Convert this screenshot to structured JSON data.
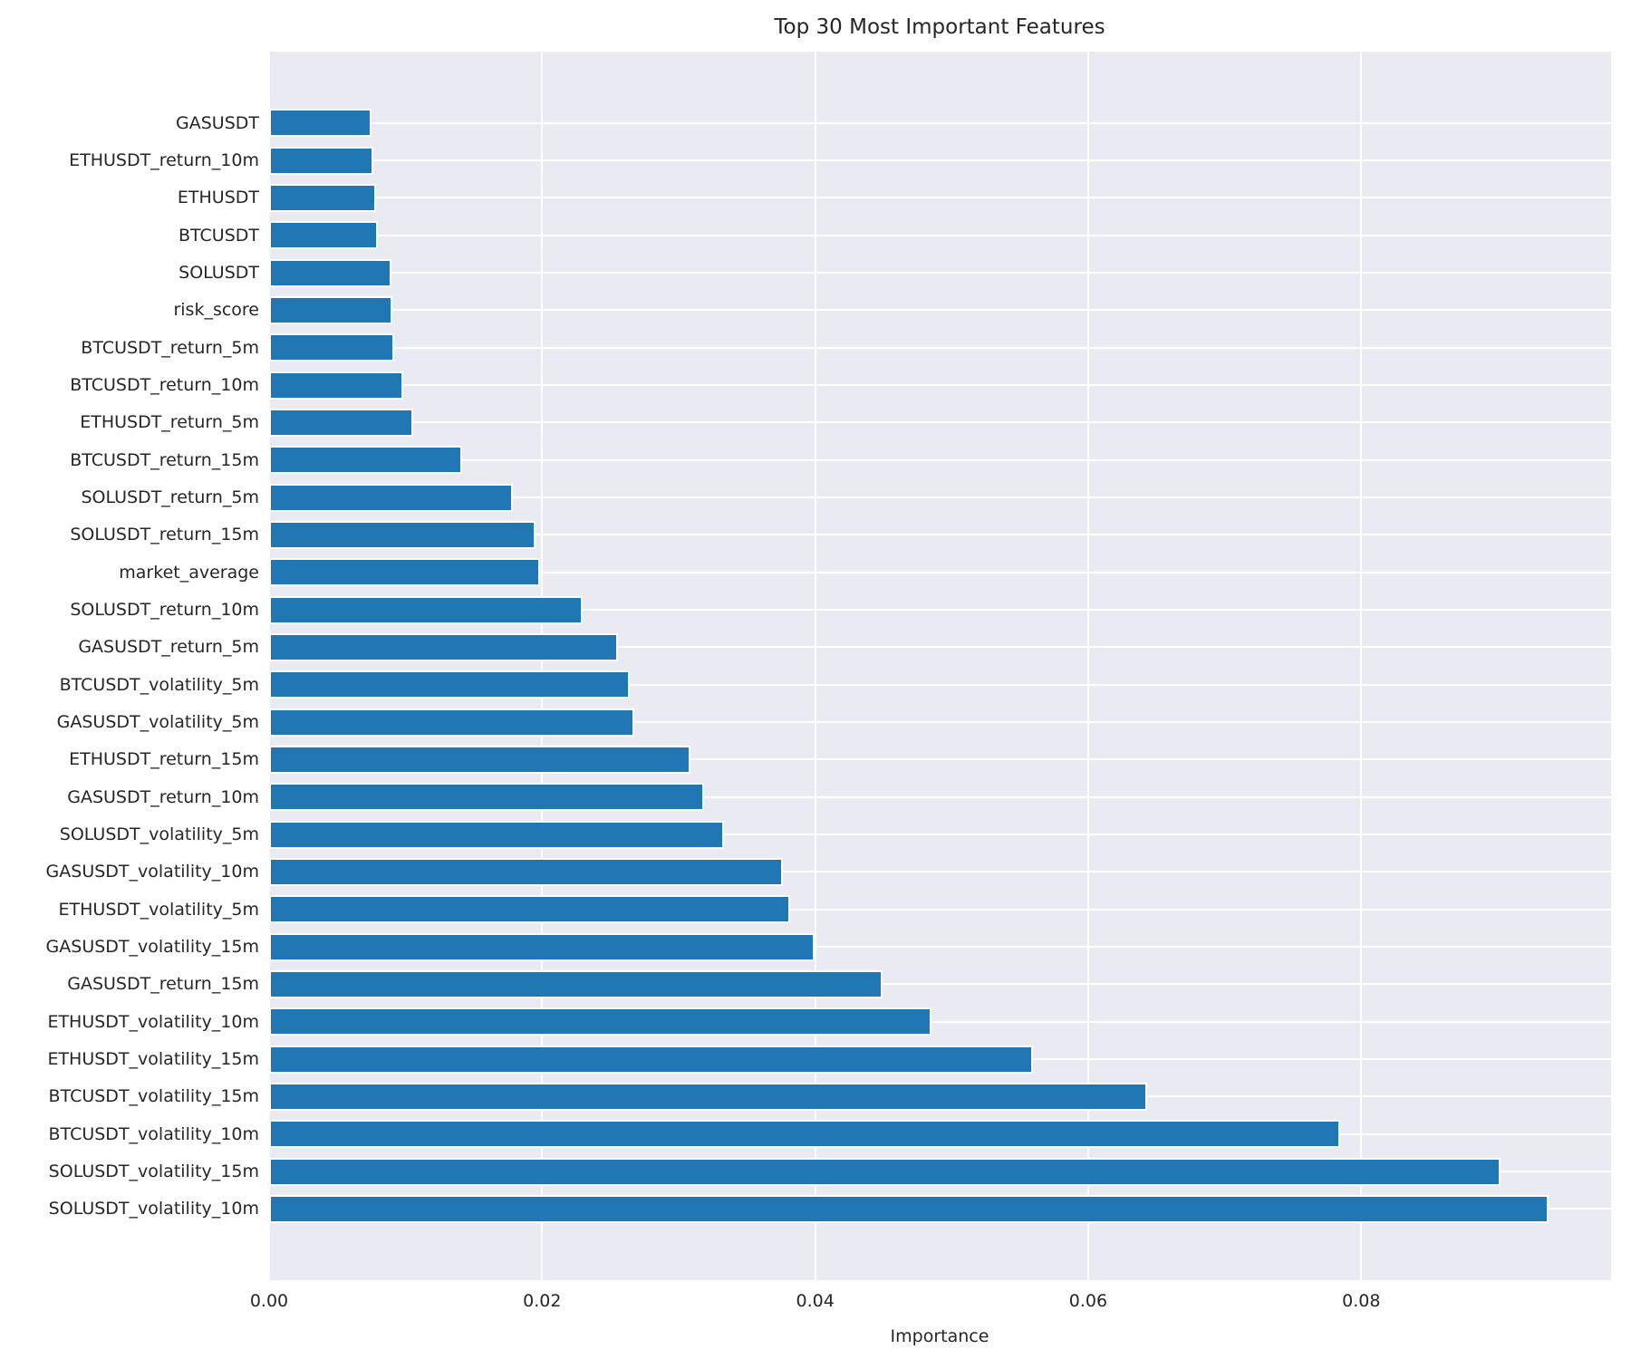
{
  "chart_data": {
    "type": "bar",
    "orientation": "horizontal",
    "title": "Top 30 Most Important Features",
    "xlabel": "Importance",
    "ylabel": "",
    "legend": false,
    "grid": true,
    "xlim": [
      0,
      0.0983
    ],
    "x_ticks": [
      0.0,
      0.02,
      0.04,
      0.06,
      0.08
    ],
    "x_tick_labels": [
      "0.00",
      "0.02",
      "0.04",
      "0.06",
      "0.08"
    ],
    "categories": [
      "GASUSDT",
      "ETHUSDT_return_10m",
      "ETHUSDT",
      "BTCUSDT",
      "SOLUSDT",
      "risk_score",
      "BTCUSDT_return_5m",
      "BTCUSDT_return_10m",
      "ETHUSDT_return_5m",
      "BTCUSDT_return_15m",
      "SOLUSDT_return_5m",
      "SOLUSDT_return_15m",
      "market_average",
      "SOLUSDT_return_10m",
      "GASUSDT_return_5m",
      "BTCUSDT_volatility_5m",
      "GASUSDT_volatility_5m",
      "ETHUSDT_return_15m",
      "GASUSDT_return_10m",
      "SOLUSDT_volatility_5m",
      "GASUSDT_volatility_10m",
      "ETHUSDT_volatility_5m",
      "GASUSDT_volatility_15m",
      "GASUSDT_return_15m",
      "ETHUSDT_volatility_10m",
      "ETHUSDT_volatility_15m",
      "BTCUSDT_volatility_15m",
      "BTCUSDT_volatility_10m",
      "SOLUSDT_volatility_15m",
      "SOLUSDT_volatility_10m"
    ],
    "values": [
      0.0074,
      0.0075,
      0.0077,
      0.0078,
      0.0088,
      0.0089,
      0.009,
      0.0097,
      0.0104,
      0.014,
      0.0177,
      0.0194,
      0.0197,
      0.0228,
      0.0254,
      0.0263,
      0.0266,
      0.0307,
      0.0317,
      0.0332,
      0.0375,
      0.038,
      0.0398,
      0.0448,
      0.0484,
      0.0558,
      0.0642,
      0.0783,
      0.0901,
      0.0936
    ],
    "bar_color": "#2077b4",
    "plot_background_color": "#eaeaf2",
    "grid_color": "#ffffff",
    "text_color": "#262626"
  }
}
